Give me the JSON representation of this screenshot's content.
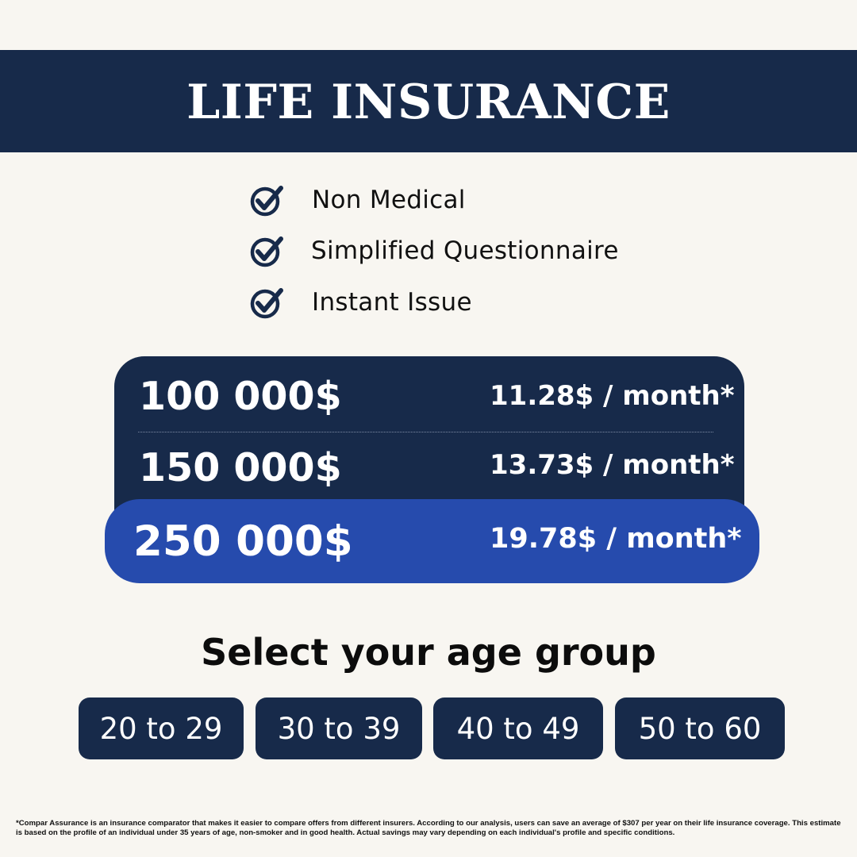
{
  "banner": {
    "title": "LIFE INSURANCE"
  },
  "features": [
    {
      "icon": "check-circle-icon",
      "label": "Non Medical"
    },
    {
      "icon": "check-circle-icon",
      "label": "Simplified Questionnaire"
    },
    {
      "icon": "check-circle-icon",
      "label": "Instant Issue"
    }
  ],
  "plans": [
    {
      "amount": "100 000$",
      "rate": "11.28$ / month*"
    },
    {
      "amount": "150 000$",
      "rate": "13.73$ / month*"
    },
    {
      "amount": "250 000$",
      "rate": "19.78$ / month*",
      "highlighted": true
    }
  ],
  "age_group": {
    "heading": "Select your age group",
    "options": [
      "20 to 29",
      "30 to 39",
      "40 to 49",
      "50 to 60"
    ]
  },
  "footnote": "*Compar Assurance is an insurance comparator that makes it easier to compare offers from different insurers. According to our analysis, users can save an average of $307 per year on their life insurance coverage. This estimate is based on the profile of an individual under 35 years of age, non-smoker and in good health. Actual savings may vary depending on each individual's profile and specific conditions.",
  "colors": {
    "background": "#f8f6f1",
    "navy": "#172a4a",
    "highlight_blue": "#264bad",
    "text_dark": "#111111"
  }
}
